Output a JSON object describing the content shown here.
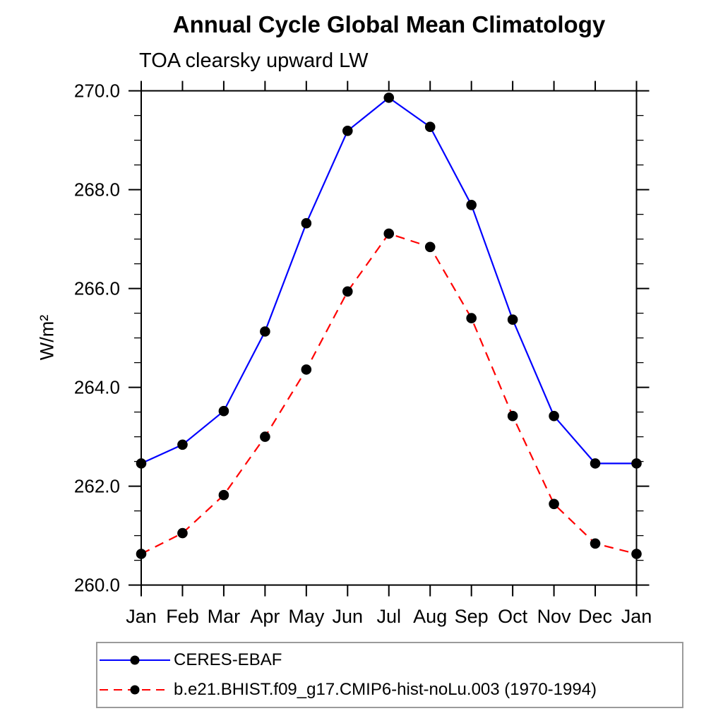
{
  "page": {
    "background_color": "#ffffff",
    "axis_color": "#000000",
    "legend_border_color": "#9b9b9b"
  },
  "chart_data": {
    "type": "line",
    "title": "Annual Cycle Global Mean Climatology",
    "subtitle": "TOA clearsky upward LW",
    "ylabel": "W/m²",
    "xlabel": "",
    "categories": [
      "Jan",
      "Feb",
      "Mar",
      "Apr",
      "May",
      "Jun",
      "Jul",
      "Aug",
      "Sep",
      "Oct",
      "Nov",
      "Dec",
      "Jan"
    ],
    "ylim": [
      260.0,
      270.0
    ],
    "ytick_major_interval": 2.0,
    "ytick_minor_interval": 0.5,
    "ytick_labels": [
      "260.0",
      "262.0",
      "264.0",
      "266.0",
      "268.0",
      "270.0"
    ],
    "grid": false,
    "legend_position": "bottom-left",
    "series": [
      {
        "name": "CERES-EBAF",
        "color": "#0000ff",
        "line_style": "solid",
        "marker": "filled-circle",
        "marker_color": "#000000",
        "values": [
          262.46,
          262.84,
          263.52,
          265.13,
          267.32,
          269.19,
          269.86,
          269.27,
          267.69,
          265.37,
          263.42,
          262.46,
          262.46
        ]
      },
      {
        "name": "b.e21.BHIST.f09_g17.CMIP6-hist-noLu.003 (1970-1994)",
        "color": "#ff0000",
        "line_style": "dashed",
        "marker": "filled-circle",
        "marker_color": "#000000",
        "values": [
          260.63,
          261.05,
          261.82,
          263.0,
          264.36,
          265.94,
          267.11,
          266.84,
          265.4,
          263.42,
          261.64,
          260.84,
          260.63
        ]
      }
    ]
  }
}
